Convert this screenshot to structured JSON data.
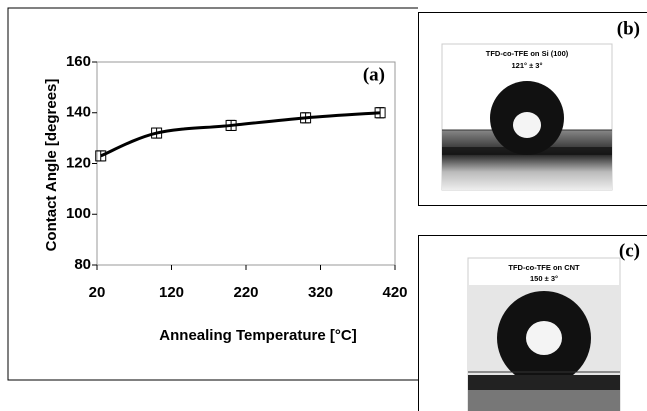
{
  "chart_data": {
    "type": "line",
    "title": "(a)",
    "x_label": "Annealing Temperature [°C]",
    "y_label": "Contact Angle [degrees]",
    "x": [
      25,
      100,
      200,
      300,
      400
    ],
    "values": [
      123,
      132,
      135,
      138,
      140
    ],
    "errors": [
      2,
      2,
      2,
      2,
      2
    ],
    "color": "#000000",
    "xlim": [
      20,
      420
    ],
    "xticks": [
      20,
      120,
      220,
      320,
      420
    ],
    "ylim": [
      80,
      160
    ],
    "yticks": [
      80,
      100,
      120,
      140,
      160
    ]
  },
  "panels": [
    {
      "label": "(b)",
      "caption": "TFD-co-TFE on Si (100)",
      "angle": "121° ± 3°"
    },
    {
      "label": "(c)",
      "caption": "TFD-co-TFE on CNT",
      "angle": "150 ± 3°"
    }
  ]
}
